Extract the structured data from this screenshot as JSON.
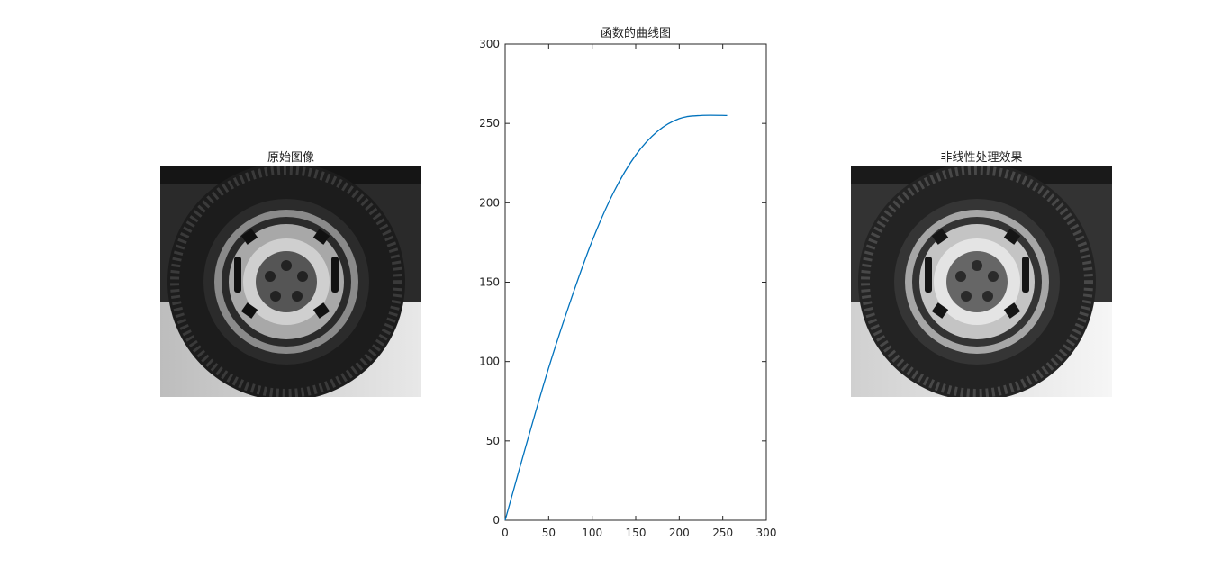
{
  "figure": {
    "left_panel": {
      "title": "原始图像"
    },
    "right_panel": {
      "title": "非线性处理效果"
    }
  },
  "chart_data": {
    "type": "line",
    "title": "函数的曲线图",
    "xlabel": "",
    "ylabel": "",
    "xlim": [
      0,
      300
    ],
    "ylim": [
      0,
      300
    ],
    "xticks": [
      0,
      50,
      100,
      150,
      200,
      250,
      300
    ],
    "yticks": [
      0,
      50,
      100,
      150,
      200,
      250,
      300
    ],
    "grid": false,
    "series": [
      {
        "color": "#0072BD",
        "x": [
          0,
          25,
          50,
          75,
          100,
          125,
          150,
          175,
          200,
          225,
          255
        ],
        "y": [
          0,
          49,
          96,
          138,
          176,
          207,
          230,
          245,
          253,
          255,
          255
        ]
      }
    ]
  }
}
